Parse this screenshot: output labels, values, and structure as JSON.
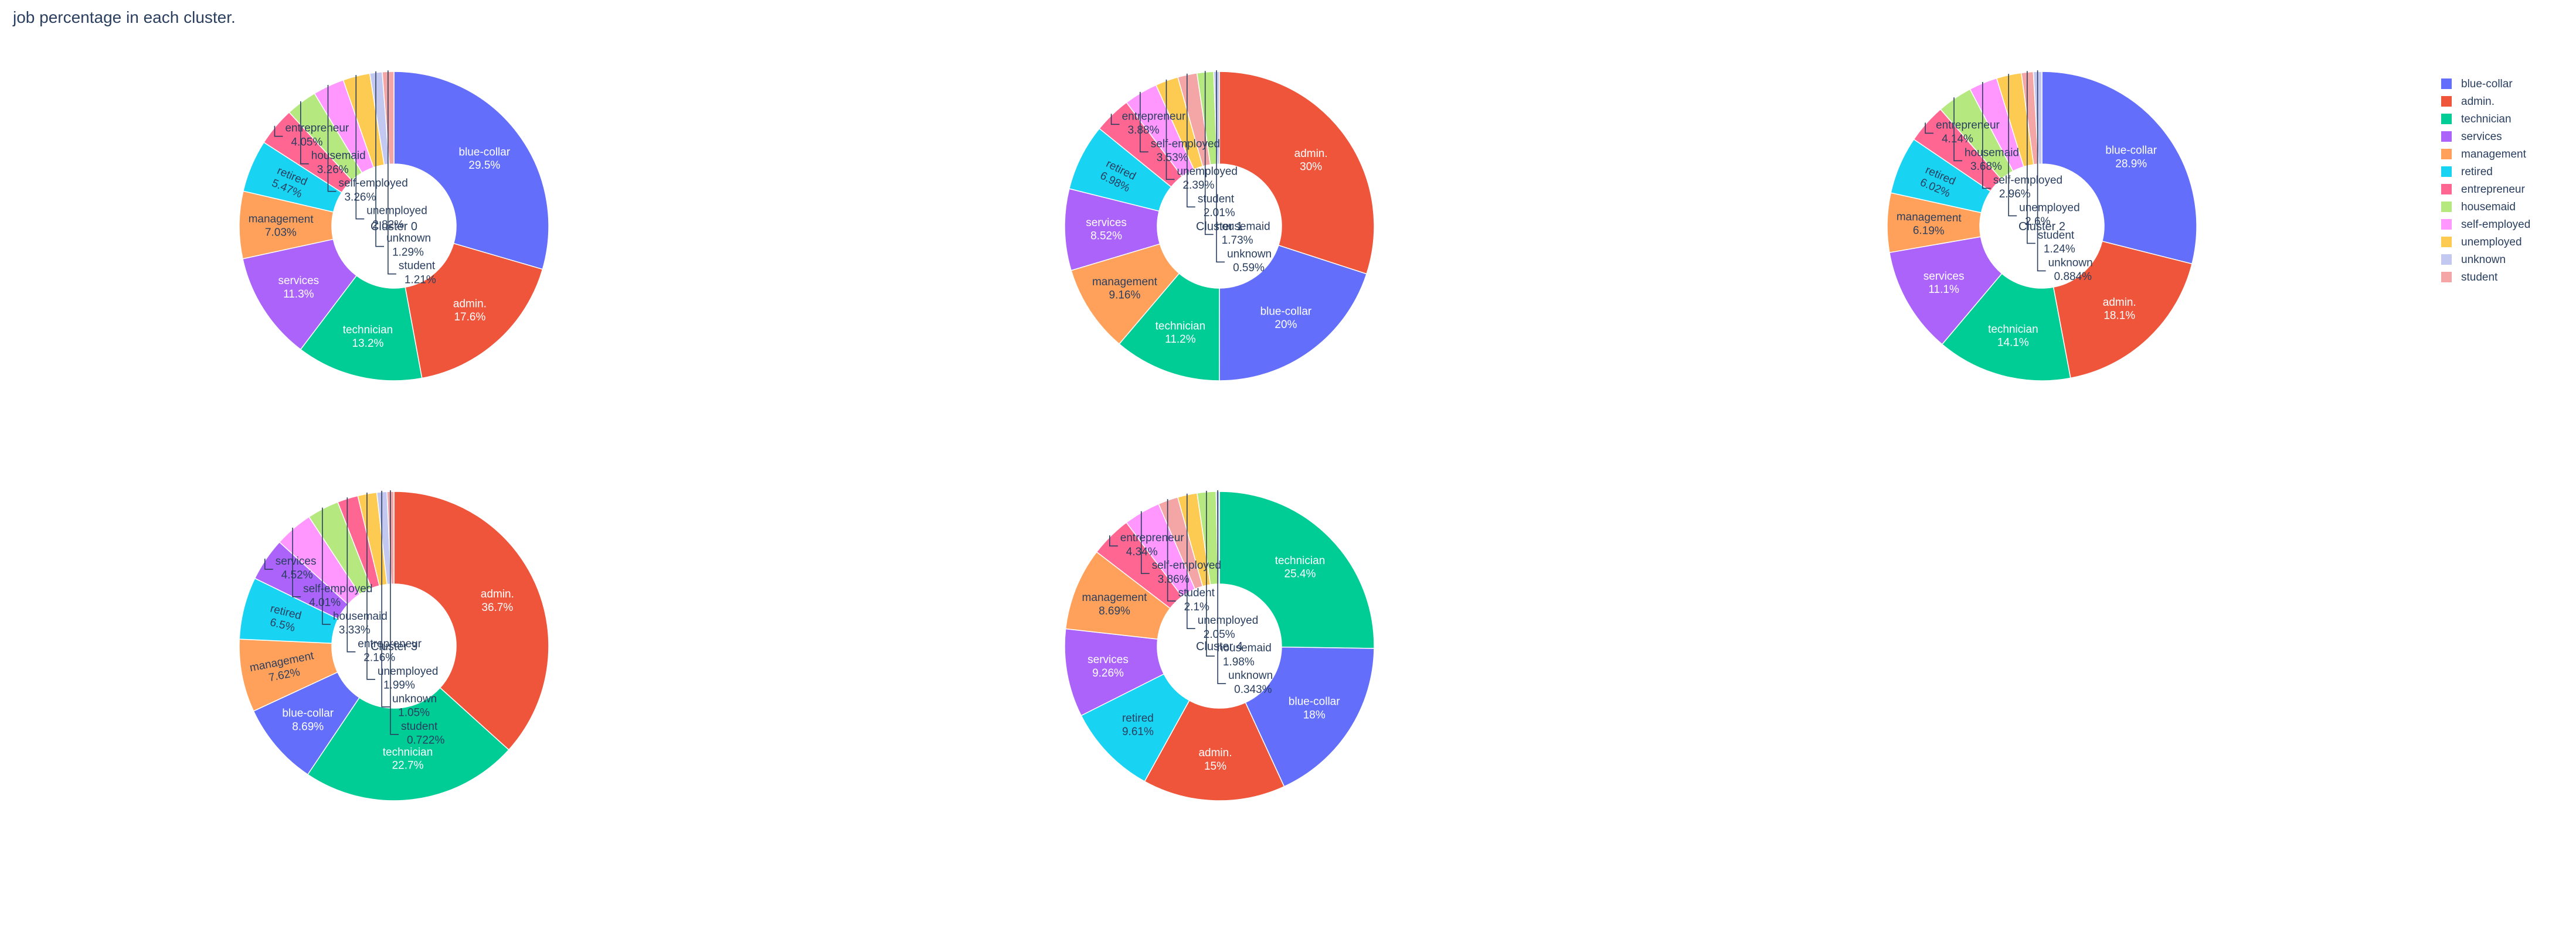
{
  "title": "job percentage in each cluster.",
  "colors": {
    "blue-collar": "#636efa",
    "admin.": "#ef553b",
    "technician": "#00cc96",
    "services": "#ab63fa",
    "management": "#ffa15a",
    "retired": "#19d3f3",
    "entrepreneur": "#ff6692",
    "housemaid": "#b6e880",
    "self-employed": "#ff97ff",
    "unemployed": "#fecb52",
    "unknown": "#c3c8f0",
    "student": "#f4a5a5"
  },
  "legend": {
    "position": "top-right",
    "items": [
      "blue-collar",
      "admin.",
      "technician",
      "services",
      "management",
      "retired",
      "entrepreneur",
      "housemaid",
      "self-employed",
      "unemployed",
      "unknown",
      "student"
    ]
  },
  "chart_data": [
    {
      "type": "pie",
      "hole": true,
      "center_label": "Cluster 0",
      "labels": [
        "blue-collar",
        "admin.",
        "technician",
        "services",
        "management",
        "retired",
        "entrepreneur",
        "housemaid",
        "self-employed",
        "unemployed",
        "unknown",
        "student"
      ],
      "values": [
        29.5,
        17.6,
        13.2,
        11.3,
        7.03,
        5.47,
        4.05,
        3.26,
        3.26,
        2.82,
        1.29,
        1.21
      ],
      "texts": [
        "29.5%",
        "17.6%",
        "13.2%",
        "11.3%",
        "7.03%",
        "5.47%",
        "4.05%",
        "3.26%",
        "3.26%",
        "2.82%",
        "1.29%",
        "1.21%"
      ]
    },
    {
      "type": "pie",
      "hole": true,
      "center_label": "Cluster 1",
      "labels": [
        "admin.",
        "blue-collar",
        "technician",
        "management",
        "services",
        "retired",
        "entrepreneur",
        "self-employed",
        "unemployed",
        "student",
        "housemaid",
        "unknown"
      ],
      "values": [
        30,
        20,
        11.2,
        9.16,
        8.52,
        6.98,
        3.88,
        3.53,
        2.39,
        2.01,
        1.73,
        0.59
      ],
      "texts": [
        "30%",
        "20%",
        "11.2%",
        "9.16%",
        "8.52%",
        "6.98%",
        "3.88%",
        "3.53%",
        "2.39%",
        "2.01%",
        "1.73%",
        "0.59%"
      ]
    },
    {
      "type": "pie",
      "hole": true,
      "center_label": "Cluster 2",
      "labels": [
        "blue-collar",
        "admin.",
        "technician",
        "services",
        "management",
        "retired",
        "entrepreneur",
        "housemaid",
        "self-employed",
        "unemployed",
        "student",
        "unknown"
      ],
      "values": [
        28.9,
        18.1,
        14.1,
        11.1,
        6.19,
        6.02,
        4.14,
        3.68,
        2.96,
        2.6,
        1.24,
        0.884
      ],
      "texts": [
        "28.9%",
        "18.1%",
        "14.1%",
        "11.1%",
        "6.19%",
        "6.02%",
        "4.14%",
        "3.68%",
        "2.96%",
        "2.6%",
        "1.24%",
        "0.884%"
      ]
    },
    {
      "type": "pie",
      "hole": true,
      "center_label": "Cluster 3",
      "labels": [
        "admin.",
        "technician",
        "blue-collar",
        "management",
        "retired",
        "services",
        "self-employed",
        "housemaid",
        "entrepreneur",
        "unemployed",
        "unknown",
        "student"
      ],
      "values": [
        36.7,
        22.7,
        8.69,
        7.62,
        6.5,
        4.52,
        4.01,
        3.33,
        2.16,
        1.99,
        1.05,
        0.722
      ],
      "texts": [
        "36.7%",
        "22.7%",
        "8.69%",
        "7.62%",
        "6.5%",
        "4.52%",
        "4.01%",
        "3.33%",
        "2.16%",
        "1.99%",
        "1.05%",
        "0.722%"
      ]
    },
    {
      "type": "pie",
      "hole": true,
      "center_label": "Cluster 4",
      "labels": [
        "technician",
        "blue-collar",
        "admin.",
        "retired",
        "services",
        "management",
        "entrepreneur",
        "self-employed",
        "student",
        "unemployed",
        "housemaid",
        "unknown"
      ],
      "values": [
        25.4,
        18,
        15,
        9.61,
        9.26,
        8.69,
        4.34,
        3.86,
        2.1,
        2.05,
        1.98,
        0.343
      ],
      "texts": [
        "25.4%",
        "18%",
        "15%",
        "9.61%",
        "9.26%",
        "8.69%",
        "4.34%",
        "3.86%",
        "2.1%",
        "2.05%",
        "1.98%",
        "0.343%"
      ]
    }
  ]
}
